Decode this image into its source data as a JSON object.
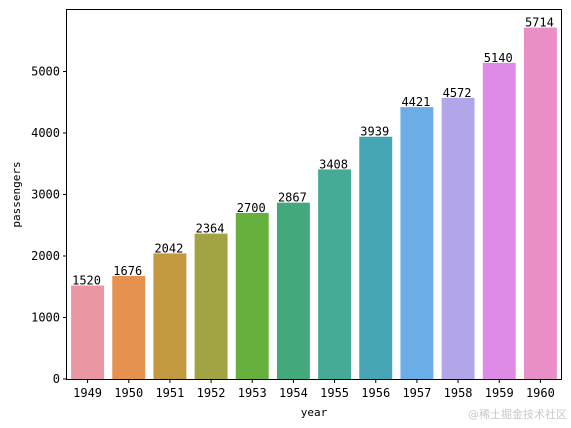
{
  "chart_data": {
    "type": "bar",
    "categories": [
      "1949",
      "1950",
      "1951",
      "1952",
      "1953",
      "1954",
      "1955",
      "1956",
      "1957",
      "1958",
      "1959",
      "1960"
    ],
    "values": [
      1520,
      1676,
      2042,
      2364,
      2700,
      2867,
      3408,
      3939,
      4421,
      4572,
      5140,
      5714
    ],
    "title": "",
    "xlabel": "year",
    "ylabel": "passengers",
    "ylim": [
      0,
      5999.7
    ],
    "yticks": [
      "0",
      "1000",
      "2000",
      "3000",
      "4000",
      "5000"
    ],
    "grid": false,
    "colors": [
      "#ea96a3",
      "#e5914f",
      "#c39940",
      "#a2a342",
      "#66b13d",
      "#43a97c",
      "#45ab97",
      "#46a6b5",
      "#6baee7",
      "#b2a6e9",
      "#e08ae8",
      "#ea8ec7"
    ]
  },
  "watermark": "@稀土掘金技术社区"
}
